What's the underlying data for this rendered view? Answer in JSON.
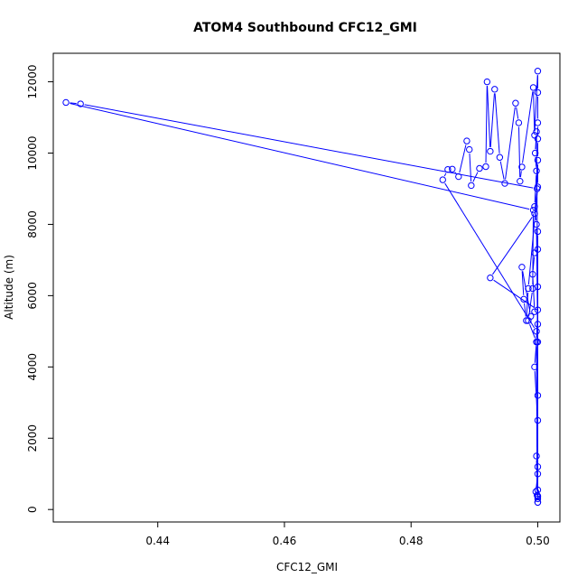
{
  "chart_data": {
    "type": "scatter",
    "title": "ATOM4 Southbound CFC12_GMI",
    "xlabel": "CFC12_GMI",
    "ylabel": "Altitude (m)",
    "xlim": [
      0.4235,
      0.5035
    ],
    "ylim": [
      -350,
      12800
    ],
    "xticks": [
      0.44,
      0.46,
      0.48,
      0.5
    ],
    "xtick_labels": [
      "0.44",
      "0.46",
      "0.48",
      "0.50"
    ],
    "yticks": [
      0,
      2000,
      4000,
      6000,
      8000,
      10000,
      12000
    ],
    "ytick_labels": [
      "0",
      "2000",
      "4000",
      "6000",
      "8000",
      "10000",
      "12000"
    ],
    "grid": false,
    "legend": "none",
    "series_color": "#0000ff",
    "marker": "open-circle",
    "connect_points": true,
    "points": [
      [
        0.5,
        200
      ],
      [
        0.5,
        350
      ],
      [
        0.4997,
        500
      ],
      [
        0.5,
        1000
      ],
      [
        0.5,
        2500
      ],
      [
        0.4995,
        4000
      ],
      [
        0.4998,
        4700
      ],
      [
        0.4985,
        5300
      ],
      [
        0.4992,
        6200
      ],
      [
        0.4993,
        8400
      ],
      [
        0.4255,
        11420
      ],
      [
        0.4278,
        11380
      ],
      [
        0.4999,
        9000
      ],
      [
        0.4995,
        8300
      ],
      [
        0.4925,
        6500
      ],
      [
        0.5,
        5600
      ],
      [
        0.4998,
        4700
      ],
      [
        0.5,
        3200
      ],
      [
        0.5,
        1200
      ],
      [
        0.5,
        300
      ],
      [
        0.4999,
        400
      ],
      [
        0.4998,
        5000
      ],
      [
        0.485,
        9250
      ],
      [
        0.4858,
        9540
      ],
      [
        0.4865,
        9550
      ],
      [
        0.4875,
        9340
      ],
      [
        0.4888,
        10340
      ],
      [
        0.4892,
        10100
      ],
      [
        0.4895,
        9090
      ],
      [
        0.4908,
        9570
      ],
      [
        0.4918,
        9620
      ],
      [
        0.492,
        12000
      ],
      [
        0.4925,
        10050
      ],
      [
        0.4932,
        11790
      ],
      [
        0.494,
        9880
      ],
      [
        0.4948,
        9150
      ],
      [
        0.4965,
        11400
      ],
      [
        0.497,
        10850
      ],
      [
        0.4972,
        9210
      ],
      [
        0.4975,
        9610
      ],
      [
        0.4993,
        11840
      ],
      [
        0.4995,
        10500
      ],
      [
        0.5,
        12300
      ],
      [
        0.5,
        11700
      ],
      [
        0.5,
        10850
      ],
      [
        0.5,
        10400
      ],
      [
        0.5,
        9800
      ],
      [
        0.5,
        9050
      ],
      [
        0.4985,
        6200
      ],
      [
        0.4982,
        5300
      ],
      [
        0.4978,
        5900
      ],
      [
        0.4975,
        6800
      ],
      [
        0.4989,
        5420
      ],
      [
        0.4995,
        5550
      ],
      [
        0.4992,
        6600
      ],
      [
        0.4995,
        7200
      ],
      [
        0.5,
        7300
      ],
      [
        0.5,
        7800
      ],
      [
        0.5,
        5200
      ],
      [
        0.5,
        4700
      ],
      [
        0.4998,
        8000
      ],
      [
        0.4995,
        8500
      ],
      [
        0.4998,
        9500
      ],
      [
        0.4996,
        10000
      ],
      [
        0.4998,
        10600
      ],
      [
        0.5,
        6250
      ],
      [
        0.5,
        200
      ],
      [
        0.5,
        380
      ],
      [
        0.4998,
        1500
      ],
      [
        0.5,
        550
      ]
    ]
  }
}
